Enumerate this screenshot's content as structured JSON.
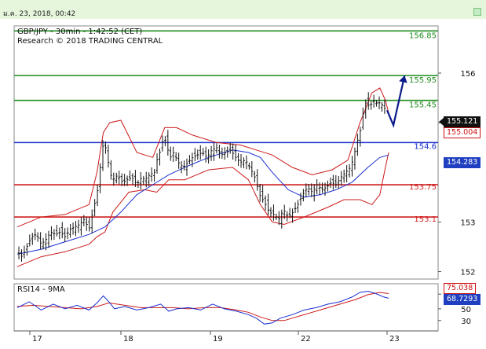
{
  "timestamp": "ม.ค. 23, 2018, 00:42",
  "header": {
    "line1": "GBP/JPY - 30min - 1:42:52 (CET)",
    "line2": "Research © 2018 TRADING CENTRAL"
  },
  "rsi_label": "RSI14 - 9MA",
  "chart_data": {
    "type": "candlestick",
    "instrument": "GBP/JPY",
    "timeframe": "30min",
    "x_ticks": [
      "17",
      "18",
      "19",
      "22",
      "23"
    ],
    "y_ticks": [
      156,
      155,
      153,
      152
    ],
    "y_range": [
      151.85,
      156.95
    ],
    "levels": [
      {
        "value": 156.85,
        "label": "156.85",
        "color": "#1e8c1e"
      },
      {
        "value": 155.95,
        "label": "155.95",
        "color": "#1e8c1e"
      },
      {
        "value": 155.45,
        "label": "155.45",
        "color": "#1e8c1e"
      },
      {
        "value": 154.6,
        "label": "154.6",
        "color": "#1a2fd0"
      },
      {
        "value": 153.75,
        "label": "153.75",
        "color": "#d02020"
      },
      {
        "value": 153.1,
        "label": "153.1",
        "color": "#d02020"
      }
    ],
    "price_tags": [
      {
        "label": "155.121",
        "bg": "#111111",
        "fg": "#ffffff"
      },
      {
        "label": "155.004",
        "bg": "#ffffff",
        "fg": "#cc1111"
      },
      {
        "label": "154.283",
        "bg": "#1f3fc0",
        "fg": "#ffffff"
      }
    ],
    "close_path": [
      [
        0,
        152.4
      ],
      [
        6,
        152.3
      ],
      [
        12,
        152.5
      ],
      [
        18,
        152.7
      ],
      [
        24,
        152.75
      ],
      [
        30,
        152.55
      ],
      [
        36,
        152.65
      ],
      [
        42,
        152.8
      ],
      [
        48,
        152.75
      ],
      [
        54,
        152.8
      ],
      [
        60,
        152.7
      ],
      [
        66,
        152.85
      ],
      [
        72,
        152.9
      ],
      [
        78,
        152.95
      ],
      [
        84,
        153.05
      ],
      [
        90,
        152.85
      ],
      [
        96,
        153.3
      ],
      [
        100,
        153.55
      ],
      [
        104,
        154.1
      ],
      [
        108,
        154.6
      ],
      [
        112,
        154.45
      ],
      [
        116,
        154.0
      ],
      [
        120,
        153.85
      ],
      [
        126,
        153.95
      ],
      [
        132,
        153.8
      ],
      [
        138,
        153.85
      ],
      [
        144,
        153.9
      ],
      [
        150,
        153.75
      ],
      [
        156,
        153.9
      ],
      [
        160,
        153.85
      ],
      [
        166,
        153.95
      ],
      [
        172,
        154.0
      ],
      [
        176,
        154.3
      ],
      [
        180,
        154.45
      ],
      [
        184,
        154.75
      ],
      [
        188,
        154.5
      ],
      [
        192,
        154.3
      ],
      [
        196,
        154.4
      ],
      [
        202,
        154.2
      ],
      [
        208,
        154.1
      ],
      [
        214,
        154.2
      ],
      [
        220,
        154.3
      ],
      [
        226,
        154.35
      ],
      [
        232,
        154.4
      ],
      [
        238,
        154.3
      ],
      [
        244,
        154.45
      ],
      [
        250,
        154.5
      ],
      [
        256,
        154.35
      ],
      [
        262,
        154.4
      ],
      [
        268,
        154.45
      ],
      [
        274,
        154.3
      ],
      [
        280,
        154.2
      ],
      [
        286,
        154.25
      ],
      [
        292,
        154.1
      ],
      [
        298,
        153.9
      ],
      [
        304,
        153.55
      ],
      [
        310,
        153.4
      ],
      [
        316,
        153.2
      ],
      [
        322,
        153.15
      ],
      [
        328,
        153.05
      ],
      [
        334,
        153.25
      ],
      [
        340,
        153.1
      ],
      [
        346,
        153.2
      ],
      [
        352,
        153.35
      ],
      [
        358,
        153.55
      ],
      [
        364,
        153.7
      ],
      [
        370,
        153.6
      ],
      [
        376,
        153.75
      ],
      [
        382,
        153.65
      ],
      [
        388,
        153.7
      ],
      [
        394,
        153.8
      ],
      [
        400,
        153.75
      ],
      [
        406,
        153.9
      ],
      [
        412,
        154.0
      ],
      [
        418,
        154.1
      ],
      [
        422,
        154.3
      ],
      [
        426,
        154.6
      ],
      [
        430,
        154.8
      ],
      [
        434,
        155.2
      ],
      [
        438,
        155.45
      ],
      [
        442,
        155.3
      ],
      [
        446,
        155.45
      ],
      [
        450,
        155.4
      ],
      [
        456,
        155.4
      ],
      [
        460,
        155.3
      ],
      [
        464,
        155.25
      ]
    ],
    "bb_upper": [
      [
        0,
        152.9
      ],
      [
        30,
        153.1
      ],
      [
        60,
        153.15
      ],
      [
        90,
        153.35
      ],
      [
        100,
        154.0
      ],
      [
        108,
        154.8
      ],
      [
        116,
        155.0
      ],
      [
        130,
        155.05
      ],
      [
        150,
        154.4
      ],
      [
        170,
        154.3
      ],
      [
        185,
        154.9
      ],
      [
        200,
        154.9
      ],
      [
        220,
        154.75
      ],
      [
        250,
        154.6
      ],
      [
        280,
        154.55
      ],
      [
        300,
        154.45
      ],
      [
        320,
        154.35
      ],
      [
        345,
        154.1
      ],
      [
        370,
        153.95
      ],
      [
        395,
        154.05
      ],
      [
        415,
        154.25
      ],
      [
        430,
        155.0
      ],
      [
        445,
        155.6
      ],
      [
        455,
        155.7
      ],
      [
        462,
        155.45
      ],
      [
        466,
        155.2
      ]
    ],
    "bb_lower": [
      [
        0,
        152.1
      ],
      [
        30,
        152.3
      ],
      [
        60,
        152.4
      ],
      [
        90,
        152.55
      ],
      [
        100,
        152.7
      ],
      [
        110,
        152.8
      ],
      [
        120,
        153.2
      ],
      [
        140,
        153.6
      ],
      [
        160,
        153.65
      ],
      [
        175,
        153.6
      ],
      [
        190,
        153.85
      ],
      [
        210,
        153.85
      ],
      [
        240,
        154.05
      ],
      [
        270,
        154.1
      ],
      [
        290,
        153.85
      ],
      [
        305,
        153.35
      ],
      [
        320,
        153.0
      ],
      [
        335,
        152.95
      ],
      [
        360,
        153.1
      ],
      [
        390,
        153.3
      ],
      [
        410,
        153.45
      ],
      [
        430,
        153.45
      ],
      [
        445,
        153.35
      ],
      [
        455,
        153.55
      ],
      [
        462,
        154.1
      ],
      [
        466,
        154.4
      ]
    ],
    "ma_line": [
      [
        0,
        152.35
      ],
      [
        30,
        152.45
      ],
      [
        60,
        152.6
      ],
      [
        90,
        152.75
      ],
      [
        110,
        152.9
      ],
      [
        130,
        153.2
      ],
      [
        150,
        153.55
      ],
      [
        170,
        153.75
      ],
      [
        190,
        153.95
      ],
      [
        210,
        154.1
      ],
      [
        240,
        154.3
      ],
      [
        270,
        154.45
      ],
      [
        290,
        154.4
      ],
      [
        305,
        154.3
      ],
      [
        320,
        154.0
      ],
      [
        340,
        153.65
      ],
      [
        360,
        153.5
      ],
      [
        380,
        153.55
      ],
      [
        400,
        153.65
      ],
      [
        420,
        153.8
      ],
      [
        440,
        154.1
      ],
      [
        455,
        154.3
      ],
      [
        466,
        154.35
      ]
    ],
    "forecast": [
      [
        464,
        155.25
      ],
      [
        472,
        154.95
      ],
      [
        486,
        155.95
      ]
    ],
    "rsi_panel": {
      "y_ticks": [
        75,
        50,
        30
      ],
      "y_range": [
        15,
        90
      ],
      "rsi_tag": {
        "label": "75.038",
        "bg": "#ffffff",
        "fg": "#cc1111"
      },
      "ma_tag": {
        "label": "68.7293",
        "bg": "#1f3fc0",
        "fg": "#ffffff"
      },
      "rsi": [
        [
          0,
          52
        ],
        [
          15,
          62
        ],
        [
          30,
          48
        ],
        [
          45,
          58
        ],
        [
          60,
          50
        ],
        [
          75,
          56
        ],
        [
          90,
          48
        ],
        [
          100,
          60
        ],
        [
          108,
          72
        ],
        [
          115,
          62
        ],
        [
          122,
          50
        ],
        [
          135,
          54
        ],
        [
          150,
          48
        ],
        [
          165,
          52
        ],
        [
          180,
          58
        ],
        [
          190,
          46
        ],
        [
          200,
          50
        ],
        [
          215,
          52
        ],
        [
          230,
          48
        ],
        [
          245,
          58
        ],
        [
          260,
          50
        ],
        [
          275,
          46
        ],
        [
          290,
          40
        ],
        [
          300,
          34
        ],
        [
          310,
          24
        ],
        [
          320,
          26
        ],
        [
          330,
          34
        ],
        [
          345,
          40
        ],
        [
          360,
          48
        ],
        [
          375,
          52
        ],
        [
          390,
          58
        ],
        [
          405,
          62
        ],
        [
          420,
          70
        ],
        [
          430,
          78
        ],
        [
          440,
          80
        ],
        [
          450,
          76
        ],
        [
          460,
          70
        ],
        [
          466,
          68
        ]
      ],
      "rsi_ma": [
        [
          0,
          54
        ],
        [
          20,
          56
        ],
        [
          40,
          54
        ],
        [
          60,
          52
        ],
        [
          80,
          50
        ],
        [
          100,
          54
        ],
        [
          115,
          60
        ],
        [
          135,
          56
        ],
        [
          155,
          52
        ],
        [
          175,
          52
        ],
        [
          195,
          52
        ],
        [
          215,
          50
        ],
        [
          235,
          52
        ],
        [
          255,
          52
        ],
        [
          275,
          48
        ],
        [
          290,
          44
        ],
        [
          305,
          36
        ],
        [
          320,
          30
        ],
        [
          335,
          30
        ],
        [
          350,
          36
        ],
        [
          365,
          42
        ],
        [
          380,
          48
        ],
        [
          395,
          54
        ],
        [
          410,
          60
        ],
        [
          425,
          66
        ],
        [
          440,
          74
        ],
        [
          455,
          78
        ],
        [
          466,
          76
        ]
      ]
    }
  }
}
